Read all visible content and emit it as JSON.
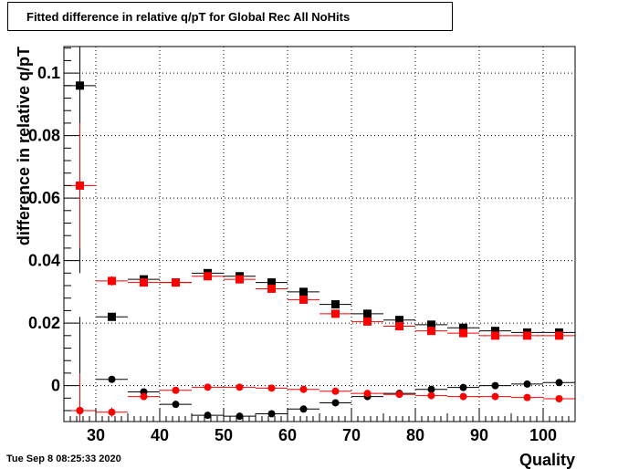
{
  "title": "Fitted difference in relative q/pT  for Global Rec All NoHits",
  "date_stamp": "Tue Sep  8 08:25:33 2020",
  "chart_data": {
    "type": "scatter",
    "xlabel": "Quality",
    "ylabel": "difference in relative q/pT",
    "xlim": [
      25,
      105
    ],
    "ylim": [
      -0.0115,
      0.1085
    ],
    "grid": true,
    "x_ticks": [
      30,
      40,
      50,
      60,
      70,
      80,
      90,
      100
    ],
    "y_ticks": [
      0,
      0.02,
      0.04,
      0.06,
      0.08,
      0.1
    ],
    "y_tick_labels": [
      "0",
      "0.02",
      "0.04",
      "0.06",
      "0.08",
      "0.1"
    ],
    "x_halfwidth": 2.5,
    "series": [
      {
        "color": "#000000",
        "marker": "square",
        "x": [
          27.5,
          32.5,
          37.5,
          42.5,
          47.5,
          52.5,
          57.5,
          62.5,
          67.5,
          72.5,
          77.5,
          82.5,
          87.5,
          92.5,
          97.5,
          102.5
        ],
        "y": [
          0.096,
          0.022,
          0.034,
          0.033,
          0.036,
          0.035,
          0.033,
          0.03,
          0.026,
          0.023,
          0.021,
          0.0195,
          0.0185,
          0.0175,
          0.017,
          0.017
        ],
        "yerr": [
          0.06,
          0.001,
          0.001,
          0.0005,
          0.0005,
          0.0005,
          0.0005,
          0.0005,
          0.0005,
          0.0005,
          0.0005,
          0.0005,
          0.0005,
          0.0005,
          0.0005,
          0.0005
        ]
      },
      {
        "color": "#ff0000",
        "marker": "square",
        "x": [
          27.5,
          32.5,
          37.5,
          42.5,
          47.5,
          52.5,
          57.5,
          62.5,
          67.5,
          72.5,
          77.5,
          82.5,
          87.5,
          92.5,
          97.5,
          102.5
        ],
        "y": [
          0.064,
          0.0335,
          0.033,
          0.033,
          0.035,
          0.034,
          0.031,
          0.0275,
          0.023,
          0.0205,
          0.019,
          0.0175,
          0.0168,
          0.016,
          0.016,
          0.016
        ],
        "yerr": [
          0.02,
          0.0015,
          0.001,
          0.0005,
          0.0005,
          0.0005,
          0.0005,
          0.0005,
          0.0005,
          0.0005,
          0.0005,
          0.0005,
          0.0005,
          0.0005,
          0.0005,
          0.0005
        ]
      },
      {
        "color": "#000000",
        "marker": "circle",
        "x": [
          27.5,
          32.5,
          37.5,
          42.5,
          47.5,
          52.5,
          57.5,
          62.5,
          67.5,
          72.5,
          77.5,
          82.5,
          87.5,
          92.5,
          97.5,
          102.5
        ],
        "y": [
          -0.008,
          0.002,
          -0.002,
          -0.006,
          -0.0095,
          -0.0098,
          -0.009,
          -0.0075,
          -0.0055,
          -0.0035,
          -0.0025,
          -0.0012,
          -0.0006,
          0.0,
          0.0005,
          0.001
        ],
        "yerr": [
          0.03,
          0.001,
          0.0005,
          0.0005,
          0.0005,
          0.0005,
          0.0005,
          0.0005,
          0.0005,
          0.0005,
          0.0005,
          0.0005,
          0.0005,
          0.0005,
          0.0005,
          0.0005
        ]
      },
      {
        "color": "#ff0000",
        "marker": "circle",
        "x": [
          27.5,
          32.5,
          37.5,
          42.5,
          47.5,
          52.5,
          57.5,
          62.5,
          67.5,
          72.5,
          77.5,
          82.5,
          87.5,
          92.5,
          97.5,
          102.5
        ],
        "y": [
          -0.008,
          -0.0085,
          -0.0035,
          -0.0015,
          -0.0005,
          -0.0005,
          -0.0008,
          -0.0012,
          -0.0018,
          -0.0025,
          -0.0028,
          -0.0032,
          -0.0035,
          -0.0035,
          -0.0038,
          -0.0042
        ],
        "yerr": [
          0.012,
          0.0015,
          0.0008,
          0.0005,
          0.0005,
          0.0005,
          0.0005,
          0.0005,
          0.0005,
          0.0005,
          0.0005,
          0.0005,
          0.0005,
          0.0005,
          0.0005,
          0.0005
        ]
      }
    ]
  }
}
